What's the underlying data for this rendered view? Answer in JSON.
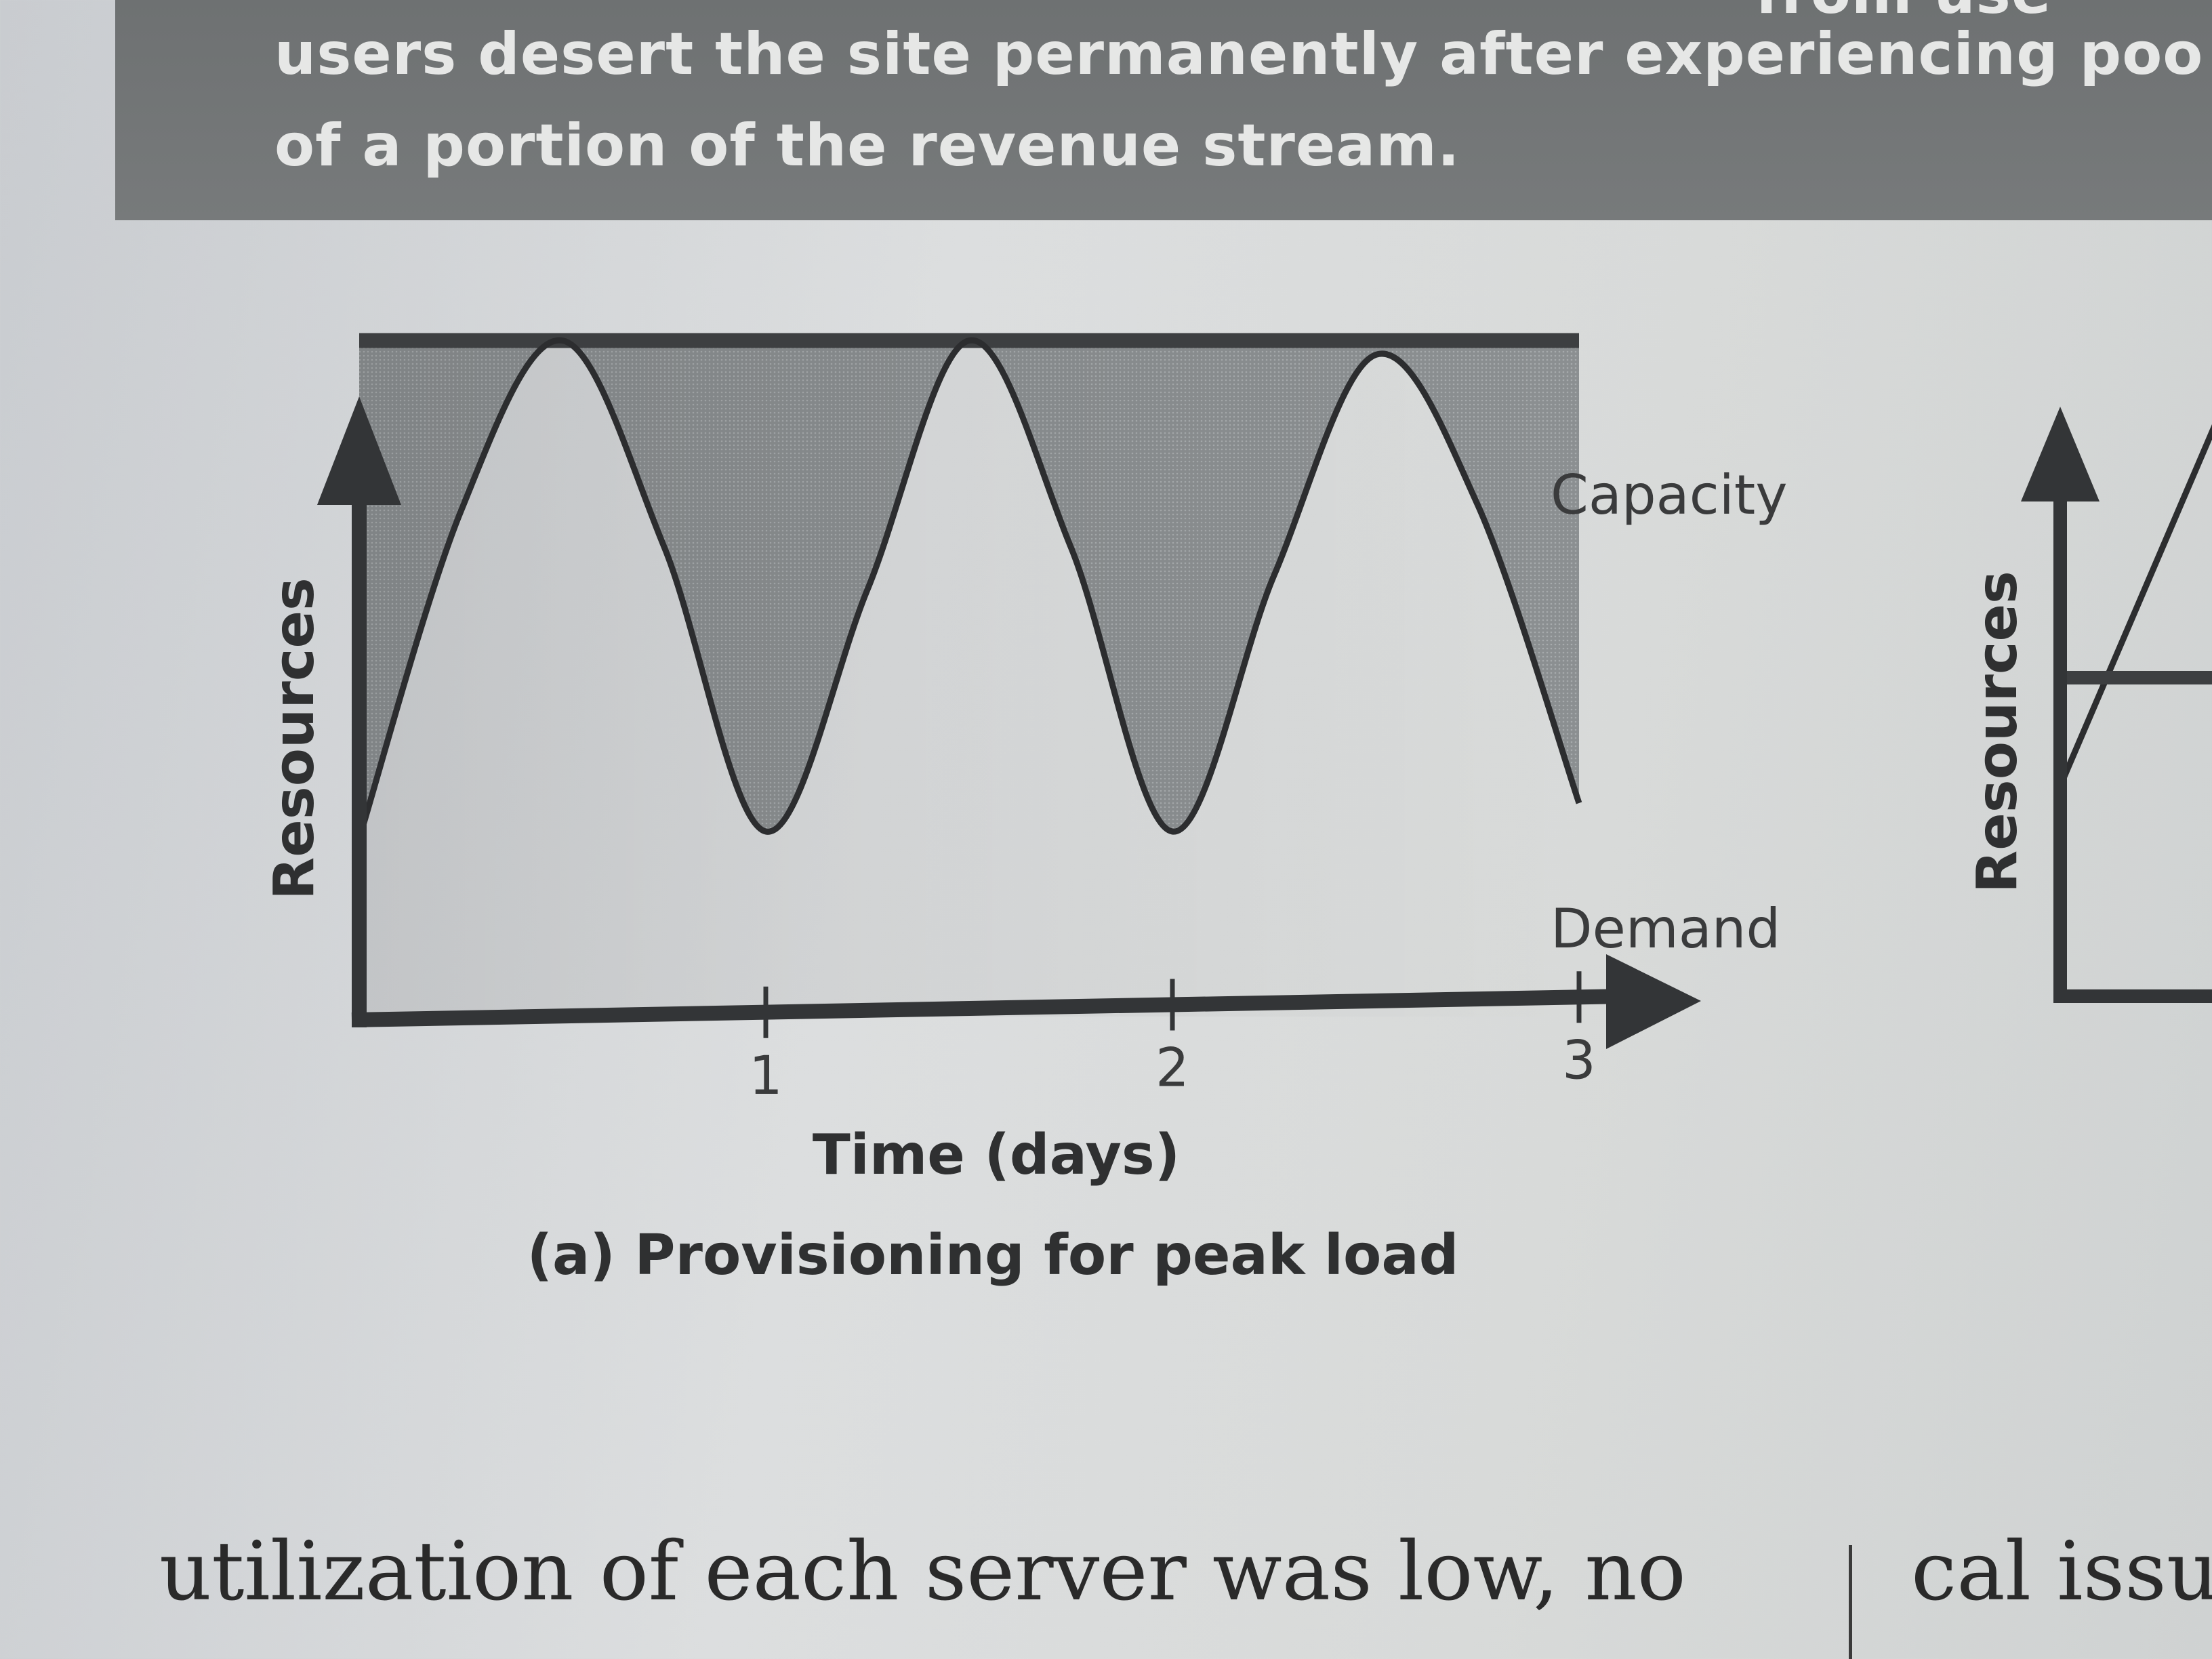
{
  "banner": {
    "line0": "from use",
    "line1": "users desert the site permanently after experiencing poo",
    "line2": "of a portion of the revenue stream."
  },
  "body_text": {
    "left": "utilization of each server was low, no",
    "right": "cal issu"
  },
  "chart_data": [
    {
      "type": "area",
      "caption": "(a) Provisioning for peak load",
      "xlabel": "Time (days)",
      "ylabel": "Resources",
      "x_ticks": [
        "1",
        "2",
        "3"
      ],
      "xlim": [
        0,
        3
      ],
      "ylim": [
        0,
        1
      ],
      "series": [
        {
          "name": "Capacity",
          "x": [
            0,
            3
          ],
          "y": [
            0.95,
            0.95
          ]
        },
        {
          "name": "Demand",
          "x": [
            0,
            0.25,
            0.5,
            0.75,
            1.0,
            1.25,
            1.5,
            1.75,
            2.0,
            2.25,
            2.5,
            2.75,
            3.0
          ],
          "y": [
            0.25,
            0.71,
            0.95,
            0.66,
            0.26,
            0.6,
            0.95,
            0.66,
            0.26,
            0.62,
            0.93,
            0.72,
            0.3
          ]
        }
      ],
      "fill": "area between Capacity and Demand shaded",
      "colors": {
        "axis": "#333537",
        "capacity": "#3d3f41",
        "demand": "#2c2d2f",
        "fill": "#8d9294"
      }
    },
    {
      "type": "line",
      "partial": true,
      "ylabel": "Resources",
      "series": [
        {
          "name": "",
          "x": [
            0,
            0.2,
            0.4
          ],
          "y": [
            0.25,
            0.6,
            0.95
          ]
        },
        {
          "name": "",
          "x": [
            0,
            0.4
          ],
          "y": [
            0.6,
            0.6
          ]
        }
      ]
    }
  ]
}
